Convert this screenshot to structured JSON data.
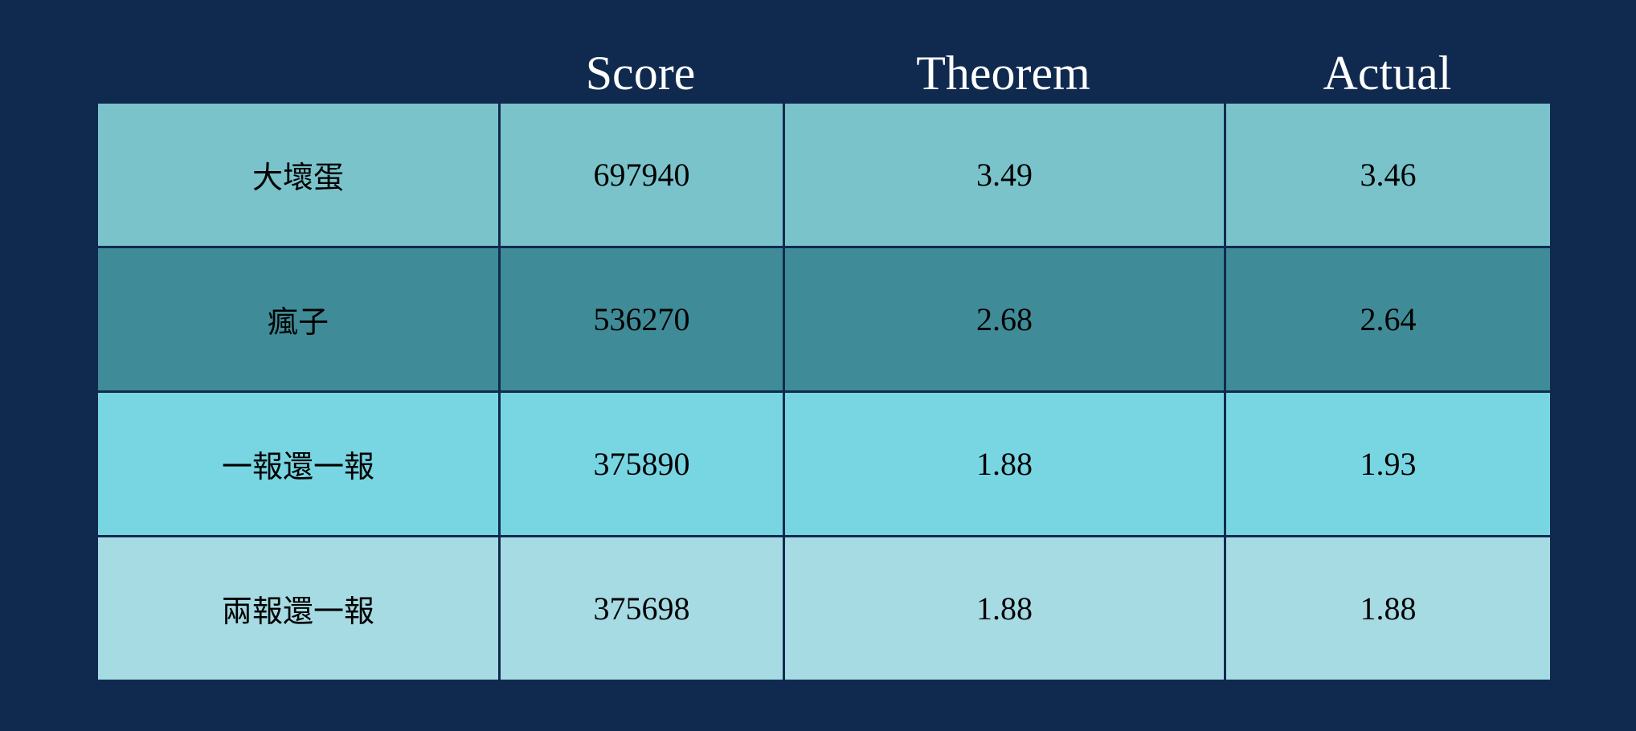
{
  "chart_data": {
    "type": "table",
    "columns": [
      "",
      "Score",
      "Theorem",
      "Actual"
    ],
    "rows": [
      {
        "label": "大壞蛋",
        "score": "697940",
        "theorem": "3.49",
        "actual": "3.46",
        "color": "#7ac3cb"
      },
      {
        "label": "瘋子",
        "score": "536270",
        "theorem": "2.68",
        "actual": "2.64",
        "color": "#3f8b97"
      },
      {
        "label": "一報還一報",
        "score": "375890",
        "theorem": "1.88",
        "actual": "1.93",
        "color": "#78d5e2"
      },
      {
        "label": "兩報還一報",
        "score": "375698",
        "theorem": "1.88",
        "actual": "1.88",
        "color": "#a6dbe3"
      }
    ]
  },
  "colors": {
    "background": "#102a4f",
    "header_text": "#ffffff",
    "cell_text": "#000000",
    "grid": "#102a4f"
  }
}
